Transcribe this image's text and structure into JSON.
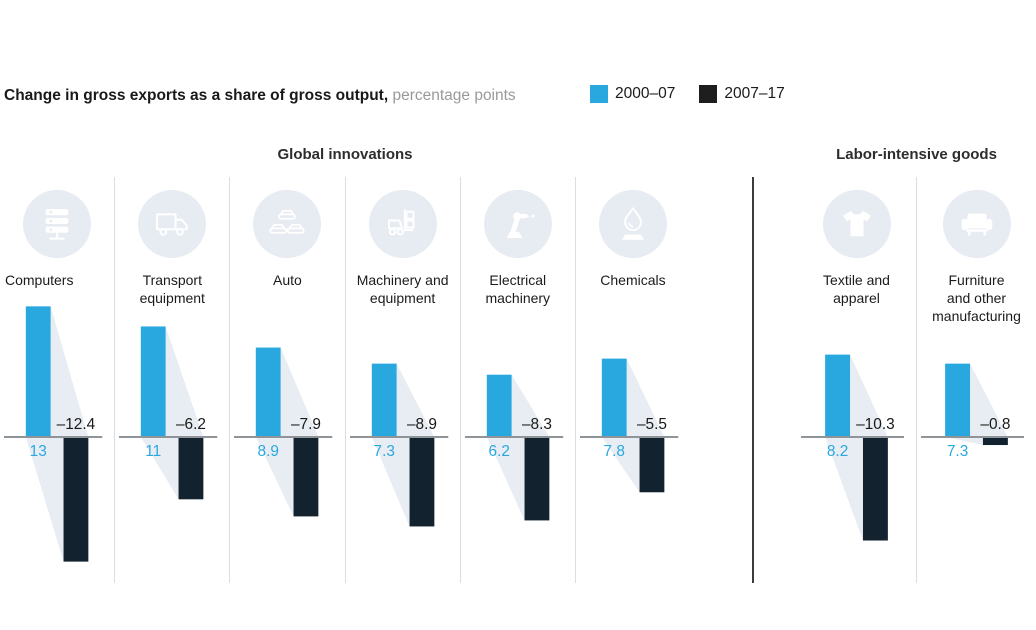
{
  "title": {
    "main": "Change in gross exports as a share of gross output,",
    "sub": "percentage points"
  },
  "legend": {
    "items": [
      {
        "label": "2000–07",
        "color": "#29A8E0"
      },
      {
        "label": "2007–17",
        "color": "#1E1E1E"
      }
    ]
  },
  "colors": {
    "bar_2000_07": "#29A8E0",
    "bar_2007_17": "#13222F",
    "flow_band": "#E8EDF3",
    "icon_circle": "#E7EBF2",
    "axis": "#8F9499",
    "divider_light": "#DADDE1",
    "divider_dark": "#3B3B3B",
    "positive_label": "#29A8E0",
    "negative_label": "#191919"
  },
  "chart_data": {
    "type": "bar",
    "title": "Change in gross exports as a share of gross output, percentage points",
    "series_names": [
      "2000–07",
      "2007–17"
    ],
    "unit": "percentage points",
    "baseline": 0,
    "ylim": [
      -13,
      14
    ],
    "legend_position": "top-right",
    "grid": false,
    "sections": [
      {
        "header": "Global innovations",
        "categories": [
          {
            "label_lines": [
              "Computers"
            ],
            "icon": "servers-icon",
            "values": [
              13,
              -12.4
            ],
            "value_labels": [
              "13",
              "–12.4"
            ]
          },
          {
            "label_lines": [
              "Transport",
              "equipment"
            ],
            "icon": "truck-icon",
            "values": [
              11,
              -6.2
            ],
            "value_labels": [
              "11",
              "–6.2"
            ]
          },
          {
            "label_lines": [
              "Auto"
            ],
            "icon": "cars-icon",
            "values": [
              8.9,
              -7.9
            ],
            "value_labels": [
              "8.9",
              "–7.9"
            ]
          },
          {
            "label_lines": [
              "Machinery and",
              "equipment"
            ],
            "icon": "forklift-icon",
            "values": [
              7.3,
              -8.9
            ],
            "value_labels": [
              "7.3",
              "–8.9"
            ]
          },
          {
            "label_lines": [
              "Electrical",
              "machinery"
            ],
            "icon": "robot-arm-icon",
            "values": [
              6.2,
              -8.3
            ],
            "value_labels": [
              "6.2",
              "–8.3"
            ]
          },
          {
            "label_lines": [
              "Chemicals"
            ],
            "icon": "flame-icon",
            "values": [
              7.8,
              -5.5
            ],
            "value_labels": [
              "7.8",
              "–5.5"
            ]
          }
        ]
      },
      {
        "header": "Labor-intensive goods",
        "categories": [
          {
            "label_lines": [
              "Textile and",
              "apparel"
            ],
            "icon": "tshirt-icon",
            "values": [
              8.2,
              -10.3
            ],
            "value_labels": [
              "8.2",
              "–10.3"
            ]
          },
          {
            "label_lines": [
              "Furniture",
              "and other",
              "manufacturing"
            ],
            "icon": "sofa-icon",
            "values": [
              7.3,
              -0.8
            ],
            "value_labels": [
              "7.3",
              "–0.8"
            ]
          }
        ]
      }
    ]
  }
}
